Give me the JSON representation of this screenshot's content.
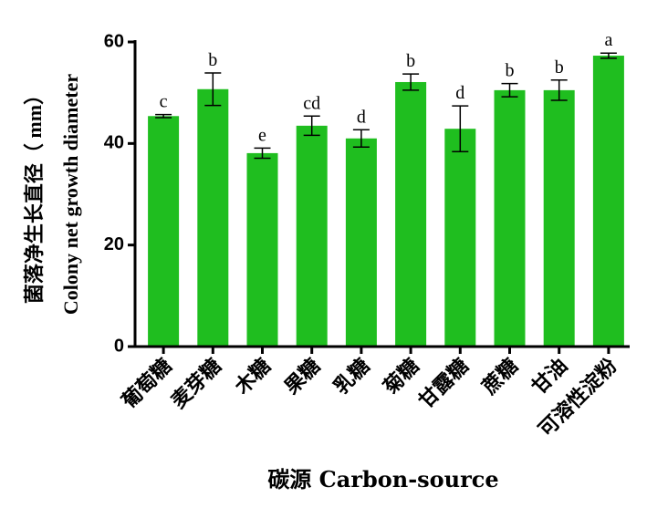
{
  "chart_data": {
    "type": "bar",
    "y_label": [
      "菌落净生长直径（ mm）",
      "Colony net growth diameter"
    ],
    "x_label": "碳源 Carbon-source",
    "categories": [
      "葡萄糖",
      "麦芽糖",
      "木糖",
      "果糖",
      "乳糖",
      "菊糖",
      "甘露糖",
      "蔗糖",
      "甘油",
      "可溶性淀粉"
    ],
    "values": [
      45.4,
      50.7,
      38.1,
      43.5,
      41.0,
      52.1,
      42.9,
      50.5,
      50.5,
      57.3
    ],
    "errors": [
      0.3,
      3.2,
      1.0,
      1.9,
      1.7,
      1.6,
      4.5,
      1.3,
      2.0,
      0.5
    ],
    "significance_letters": [
      "c",
      "b",
      "e",
      "cd",
      "d",
      "b",
      "d",
      "b",
      "b",
      "a"
    ],
    "color": "#1fbe1f",
    "ylim": [
      0,
      60
    ],
    "yticks": [
      0,
      20,
      40,
      60
    ]
  }
}
